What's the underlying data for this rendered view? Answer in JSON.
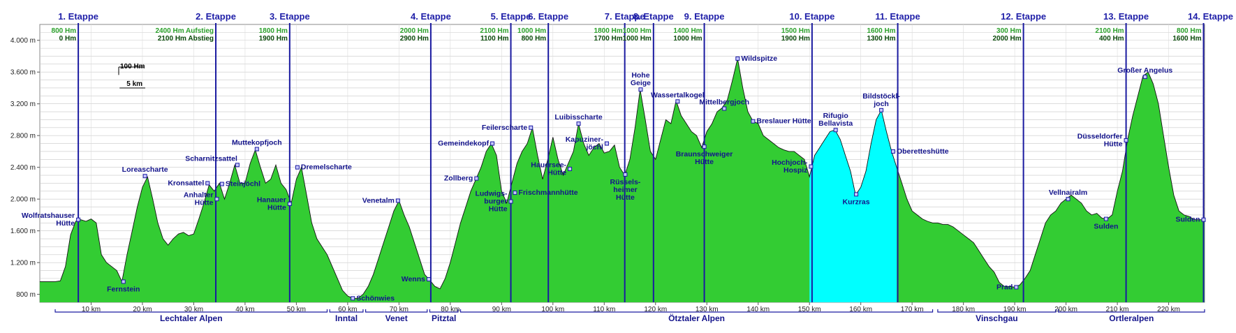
{
  "chart_data": {
    "type": "area",
    "xlabel_unit": "km",
    "ylabel_unit": "m",
    "xlim": [
      0,
      227
    ],
    "ylim": [
      700,
      4200
    ],
    "x_ticks": [
      10,
      20,
      30,
      40,
      50,
      60,
      70,
      80,
      90,
      100,
      110,
      120,
      130,
      140,
      150,
      160,
      170,
      180,
      190,
      200,
      210,
      220
    ],
    "y_ticks": [
      800,
      1200,
      1600,
      2000,
      2400,
      2800,
      3200,
      3600,
      4000
    ],
    "x_tick_labels": [
      "10 km",
      "20 km",
      "30 km",
      "40 km",
      "50 km",
      "60 km",
      "70 km",
      "80 km",
      "90 km",
      "100 km",
      "110 km",
      "120 km",
      "130 km",
      "140 km",
      "150 km",
      "160 km",
      "170 km",
      "180 km",
      "190 km",
      "200 km",
      "210 km",
      "220 km"
    ],
    "y_tick_labels": [
      "800 m",
      "1.200 m",
      "1.600 m",
      "2.000 m",
      "2.400 m",
      "2.800 m",
      "3.200 m",
      "3.600 m",
      "4.000 m"
    ],
    "colors": {
      "fill": "#33cc33",
      "glacier": "#00ffff",
      "stage_line": "#1a1aa0",
      "grid": "#c8c8c8",
      "text": "#14148c"
    },
    "highlight_range": [
      150,
      167
    ],
    "profile": [
      [
        0,
        960
      ],
      [
        3,
        960
      ],
      [
        4,
        970
      ],
      [
        5,
        1150
      ],
      [
        6,
        1550
      ],
      [
        7,
        1720
      ],
      [
        8,
        1740
      ],
      [
        9,
        1720
      ],
      [
        10,
        1750
      ],
      [
        11,
        1700
      ],
      [
        12,
        1300
      ],
      [
        13,
        1200
      ],
      [
        14,
        1150
      ],
      [
        15,
        1100
      ],
      [
        16,
        960
      ],
      [
        17,
        1300
      ],
      [
        18,
        1600
      ],
      [
        19,
        1900
      ],
      [
        20,
        2150
      ],
      [
        21,
        2280
      ],
      [
        22,
        2000
      ],
      [
        23,
        1700
      ],
      [
        24,
        1500
      ],
      [
        25,
        1420
      ],
      [
        26,
        1500
      ],
      [
        27,
        1560
      ],
      [
        28,
        1580
      ],
      [
        29,
        1540
      ],
      [
        30,
        1560
      ],
      [
        31,
        1750
      ],
      [
        32,
        1950
      ],
      [
        33,
        2180
      ],
      [
        34,
        2100
      ],
      [
        35,
        2200
      ],
      [
        36,
        2000
      ],
      [
        37,
        2200
      ],
      [
        38,
        2430
      ],
      [
        39,
        2200
      ],
      [
        40,
        2200
      ],
      [
        41,
        2450
      ],
      [
        42,
        2620
      ],
      [
        43,
        2400
      ],
      [
        44,
        2200
      ],
      [
        45,
        2250
      ],
      [
        46,
        2430
      ],
      [
        47,
        2200
      ],
      [
        48,
        2120
      ],
      [
        49,
        1950
      ],
      [
        50,
        2250
      ],
      [
        51,
        2400
      ],
      [
        52,
        2050
      ],
      [
        53,
        1700
      ],
      [
        54,
        1500
      ],
      [
        55,
        1400
      ],
      [
        56,
        1300
      ],
      [
        57,
        1150
      ],
      [
        58,
        1000
      ],
      [
        59,
        850
      ],
      [
        60,
        780
      ],
      [
        61,
        750
      ],
      [
        62,
        750
      ],
      [
        63,
        800
      ],
      [
        64,
        900
      ],
      [
        65,
        1050
      ],
      [
        66,
        1250
      ],
      [
        67,
        1450
      ],
      [
        68,
        1650
      ],
      [
        69,
        1850
      ],
      [
        70,
        1980
      ],
      [
        71,
        1800
      ],
      [
        72,
        1650
      ],
      [
        73,
        1450
      ],
      [
        74,
        1250
      ],
      [
        75,
        1050
      ],
      [
        76,
        980
      ],
      [
        77,
        900
      ],
      [
        78,
        870
      ],
      [
        79,
        1000
      ],
      [
        80,
        1200
      ],
      [
        81,
        1450
      ],
      [
        82,
        1700
      ],
      [
        83,
        1900
      ],
      [
        84,
        2100
      ],
      [
        85,
        2250
      ],
      [
        86,
        2400
      ],
      [
        87,
        2600
      ],
      [
        88,
        2700
      ],
      [
        89,
        2550
      ],
      [
        90,
        2100
      ],
      [
        91,
        1950
      ],
      [
        92,
        2200
      ],
      [
        93,
        2450
      ],
      [
        94,
        2600
      ],
      [
        95,
        2700
      ],
      [
        96,
        2900
      ],
      [
        97,
        2550
      ],
      [
        98,
        2250
      ],
      [
        99,
        2500
      ],
      [
        100,
        2780
      ],
      [
        101,
        2500
      ],
      [
        102,
        2300
      ],
      [
        103,
        2450
      ],
      [
        104,
        2600
      ],
      [
        105,
        2950
      ],
      [
        106,
        2700
      ],
      [
        107,
        2550
      ],
      [
        108,
        2650
      ],
      [
        109,
        2700
      ],
      [
        110,
        2580
      ],
      [
        111,
        2600
      ],
      [
        112,
        2680
      ],
      [
        113,
        2400
      ],
      [
        114,
        2300
      ],
      [
        115,
        2500
      ],
      [
        116,
        2900
      ],
      [
        117,
        3380
      ],
      [
        118,
        3000
      ],
      [
        119,
        2600
      ],
      [
        120,
        2500
      ],
      [
        121,
        2750
      ],
      [
        122,
        3000
      ],
      [
        123,
        2950
      ],
      [
        124,
        3240
      ],
      [
        125,
        3050
      ],
      [
        126,
        2950
      ],
      [
        127,
        2850
      ],
      [
        128,
        2800
      ],
      [
        129,
        2650
      ],
      [
        130,
        2850
      ],
      [
        131,
        2950
      ],
      [
        132,
        3100
      ],
      [
        133,
        3150
      ],
      [
        134,
        3250
      ],
      [
        135,
        3500
      ],
      [
        136,
        3770
      ],
      [
        137,
        3400
      ],
      [
        138,
        3100
      ],
      [
        139,
        2980
      ],
      [
        140,
        2950
      ],
      [
        141,
        2800
      ],
      [
        142,
        2750
      ],
      [
        143,
        2700
      ],
      [
        144,
        2650
      ],
      [
        145,
        2620
      ],
      [
        146,
        2600
      ],
      [
        147,
        2600
      ],
      [
        148,
        2550
      ],
      [
        149,
        2500
      ],
      [
        150,
        2280
      ],
      [
        151,
        2550
      ],
      [
        152,
        2650
      ],
      [
        153,
        2750
      ],
      [
        154,
        2850
      ],
      [
        155,
        2870
      ],
      [
        156,
        2750
      ],
      [
        157,
        2550
      ],
      [
        158,
        2350
      ],
      [
        159,
        2050
      ],
      [
        160,
        2150
      ],
      [
        161,
        2350
      ],
      [
        162,
        2700
      ],
      [
        163,
        3000
      ],
      [
        164,
        3120
      ],
      [
        165,
        2850
      ],
      [
        166,
        2600
      ],
      [
        167,
        2400
      ],
      [
        168,
        2200
      ],
      [
        169,
        2000
      ],
      [
        170,
        1850
      ],
      [
        171,
        1800
      ],
      [
        172,
        1750
      ],
      [
        173,
        1720
      ],
      [
        174,
        1700
      ],
      [
        175,
        1700
      ],
      [
        176,
        1680
      ],
      [
        177,
        1680
      ],
      [
        178,
        1650
      ],
      [
        179,
        1600
      ],
      [
        180,
        1550
      ],
      [
        181,
        1500
      ],
      [
        182,
        1450
      ],
      [
        183,
        1350
      ],
      [
        184,
        1250
      ],
      [
        185,
        1150
      ],
      [
        186,
        1080
      ],
      [
        187,
        950
      ],
      [
        188,
        900
      ],
      [
        189,
        900
      ],
      [
        190,
        890
      ],
      [
        191,
        920
      ],
      [
        192,
        1000
      ],
      [
        193,
        1100
      ],
      [
        194,
        1300
      ],
      [
        195,
        1500
      ],
      [
        196,
        1700
      ],
      [
        197,
        1800
      ],
      [
        198,
        1850
      ],
      [
        199,
        1950
      ],
      [
        200,
        2000
      ],
      [
        201,
        2050
      ],
      [
        202,
        2000
      ],
      [
        203,
        1950
      ],
      [
        204,
        1850
      ],
      [
        205,
        1800
      ],
      [
        206,
        1820
      ],
      [
        207,
        1760
      ],
      [
        208,
        1750
      ],
      [
        209,
        1800
      ],
      [
        210,
        2100
      ],
      [
        211,
        2350
      ],
      [
        212,
        2750
      ],
      [
        213,
        3050
      ],
      [
        214,
        3300
      ],
      [
        215,
        3550
      ],
      [
        216,
        3600
      ],
      [
        217,
        3450
      ],
      [
        218,
        3200
      ],
      [
        219,
        2800
      ],
      [
        220,
        2400
      ],
      [
        221,
        2050
      ],
      [
        222,
        1850
      ],
      [
        223,
        1800
      ],
      [
        224,
        1780
      ],
      [
        225,
        1740
      ],
      [
        226,
        1740
      ],
      [
        227,
        1740
      ]
    ],
    "stages": [
      {
        "km": 7.5,
        "label": "1. Etappe",
        "up": "800 Hm",
        "down": "0 Hm"
      },
      {
        "km": 34.3,
        "label": "2. Etappe",
        "up": "2400 Hm Aufstieg",
        "down": "2100 Hm Abstieg"
      },
      {
        "km": 48.7,
        "label": "3. Etappe",
        "up": "1800 Hm",
        "down": "1900 Hm"
      },
      {
        "km": 76.2,
        "label": "4. Etappe",
        "up": "2000 Hm",
        "down": "2900 Hm"
      },
      {
        "km": 91.8,
        "label": "5. Etappe",
        "up": "2100 Hm",
        "down": "1100 Hm"
      },
      {
        "km": 99.1,
        "label": "6. Etappe",
        "up": "1000 Hm",
        "down": "800 Hm"
      },
      {
        "km": 114.0,
        "label": "7. Etappe",
        "up": "1800 Hm",
        "down": "1700 Hm"
      },
      {
        "km": 119.6,
        "label": "8. Etappe",
        "up": "1000 Hm",
        "down": "1000 Hm"
      },
      {
        "km": 129.5,
        "label": "9. Etappe",
        "up": "1400 Hm",
        "down": "1000 Hm"
      },
      {
        "km": 150.5,
        "label": "10. Etappe",
        "up": "1500 Hm",
        "down": "1900 Hm"
      },
      {
        "km": 167.2,
        "label": "11. Etappe",
        "up": "1600 Hm",
        "down": "1300 Hm"
      },
      {
        "km": 191.7,
        "label": "12. Etappe",
        "up": "300 Hm",
        "down": "2000 Hm"
      },
      {
        "km": 211.7,
        "label": "13. Etappe",
        "up": "2100 Hm",
        "down": "400 Hm"
      },
      {
        "km": 226.8,
        "label": "14. Etappe",
        "up": "800 Hm",
        "down": "1600 Hm"
      }
    ],
    "annotations": [
      {
        "km": 7.5,
        "elev": 1740,
        "lines": [
          "Wolfratshauser",
          "Hütte"
        ],
        "side": "left"
      },
      {
        "km": 16.3,
        "elev": 960,
        "lines": [
          "Fernstein"
        ],
        "side": "below"
      },
      {
        "km": 20.5,
        "elev": 2290,
        "lines": [
          "Loreascharte"
        ],
        "side": "above"
      },
      {
        "km": 32.7,
        "elev": 2200,
        "lines": [
          "Kronsattel"
        ],
        "side": "left"
      },
      {
        "km": 34.5,
        "elev": 2000,
        "lines": [
          "Anhalter",
          "Hütte"
        ],
        "side": "left"
      },
      {
        "km": 35.5,
        "elev": 2190,
        "lines": [
          "Steinjöchl"
        ],
        "side": "right"
      },
      {
        "km": 38.5,
        "elev": 2430,
        "lines": [
          "Scharnitzsattel"
        ],
        "side": "aboveleft"
      },
      {
        "km": 42.3,
        "elev": 2630,
        "lines": [
          "Muttekopfjoch"
        ],
        "side": "above"
      },
      {
        "km": 48.7,
        "elev": 1940,
        "lines": [
          "Hanauer",
          "Hütte"
        ],
        "side": "left"
      },
      {
        "km": 50.2,
        "elev": 2400,
        "lines": [
          "Dremelscharte"
        ],
        "side": "right"
      },
      {
        "km": 61,
        "elev": 750,
        "lines": [
          "Schönwies"
        ],
        "side": "right"
      },
      {
        "km": 69.8,
        "elev": 1980,
        "lines": [
          "Venetalm"
        ],
        "side": "left"
      },
      {
        "km": 75.8,
        "elev": 990,
        "lines": [
          "Wenns"
        ],
        "side": "left"
      },
      {
        "km": 85.1,
        "elev": 2260,
        "lines": [
          "Zollberg"
        ],
        "side": "left"
      },
      {
        "km": 88.2,
        "elev": 2700,
        "lines": [
          "Gemeindekopf"
        ],
        "side": "left"
      },
      {
        "km": 91.8,
        "elev": 1970,
        "lines": [
          "Ludwigs-",
          "burger",
          "Hütte"
        ],
        "side": "left"
      },
      {
        "km": 95.7,
        "elev": 2900,
        "lines": [
          "Feilerscharte"
        ],
        "side": "left"
      },
      {
        "km": 92.6,
        "elev": 2080,
        "lines": [
          "Frischmannhütte"
        ],
        "side": "right"
      },
      {
        "km": 105,
        "elev": 2950,
        "lines": [
          "Luibisscharte"
        ],
        "side": "above"
      },
      {
        "km": 103.3,
        "elev": 2380,
        "lines": [
          "Hauersee-",
          "Hütte"
        ],
        "side": "left"
      },
      {
        "km": 110.5,
        "elev": 2700,
        "lines": [
          "Kapuziner-",
          "jöchl"
        ],
        "side": "left"
      },
      {
        "km": 114.1,
        "elev": 2310,
        "lines": [
          "Rüssels-",
          "heimer",
          "Hütte"
        ],
        "side": "below"
      },
      {
        "km": 117.1,
        "elev": 3380,
        "lines": [
          "Hohe",
          "Geige"
        ],
        "side": "above"
      },
      {
        "km": 124.3,
        "elev": 3230,
        "lines": [
          "Wassertalkogel"
        ],
        "side": "above"
      },
      {
        "km": 129.5,
        "elev": 2660,
        "lines": [
          "Braunschweiger",
          "Hütte"
        ],
        "side": "below"
      },
      {
        "km": 133.4,
        "elev": 3140,
        "lines": [
          "Mittelbergjoch"
        ],
        "side": "above"
      },
      {
        "km": 136,
        "elev": 3770,
        "lines": [
          "Wildspitze"
        ],
        "side": "right"
      },
      {
        "km": 139,
        "elev": 2980,
        "lines": [
          "Breslauer Hütte"
        ],
        "side": "right"
      },
      {
        "km": 150.3,
        "elev": 2410,
        "lines": [
          "Hochjoch-",
          "Hospiz"
        ],
        "side": "left"
      },
      {
        "km": 155.1,
        "elev": 2870,
        "lines": [
          "Rifugio",
          "Bellavista"
        ],
        "side": "above"
      },
      {
        "km": 159.1,
        "elev": 2060,
        "lines": [
          "Kurzras"
        ],
        "side": "below"
      },
      {
        "km": 164,
        "elev": 3120,
        "lines": [
          "Bildstöckl-",
          "joch"
        ],
        "side": "above"
      },
      {
        "km": 166.3,
        "elev": 2600,
        "lines": [
          "Oberetteshütte"
        ],
        "side": "right"
      },
      {
        "km": 190.3,
        "elev": 890,
        "lines": [
          "Prad"
        ],
        "side": "left"
      },
      {
        "km": 200.4,
        "elev": 2000,
        "lines": [
          "Vellnairalm"
        ],
        "side": "above"
      },
      {
        "km": 207.8,
        "elev": 1750,
        "lines": [
          "Sulden"
        ],
        "side": "below"
      },
      {
        "km": 211.7,
        "elev": 2740,
        "lines": [
          "Düsseldorfer",
          "Hütte"
        ],
        "side": "left"
      },
      {
        "km": 215.4,
        "elev": 3540,
        "lines": [
          "Großer Angelus"
        ],
        "side": "above"
      },
      {
        "km": 226.8,
        "elev": 1740,
        "lines": [
          "Sulden"
        ],
        "side": "left"
      }
    ],
    "regions": [
      {
        "from": 3,
        "to": 56,
        "label": "Lechtaler Alpen"
      },
      {
        "from": 56.5,
        "to": 63,
        "label": "Inntal"
      },
      {
        "from": 63.5,
        "to": 75.5,
        "label": "Venet"
      },
      {
        "from": 76,
        "to": 81.5,
        "label": "Pitztal"
      },
      {
        "from": 82,
        "to": 174,
        "label": "Ötztaler Alpen"
      },
      {
        "from": 175,
        "to": 198,
        "label": "Vinschgau"
      },
      {
        "from": 198.5,
        "to": 227,
        "label": "Ortleralpen"
      }
    ],
    "scale_bar": {
      "height_label": "100 Hm",
      "length_label": "5 km",
      "height_m": 100,
      "length_km": 5
    }
  }
}
